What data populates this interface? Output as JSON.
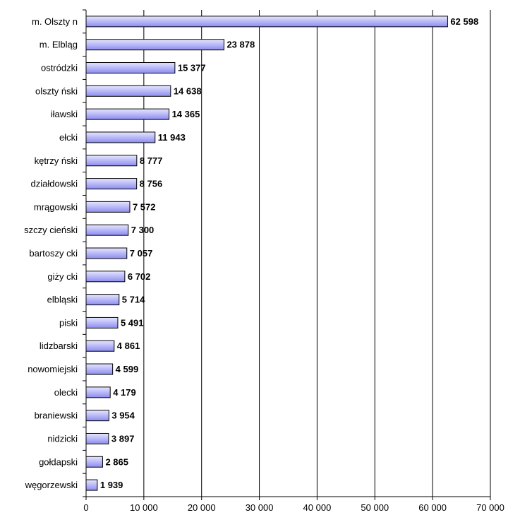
{
  "chart_data": {
    "type": "bar",
    "orientation": "horizontal",
    "categories": [
      "m. Olsztyn",
      "m. Elbląg",
      "ostródzki",
      "olsztyński",
      "iławski",
      "ełcki",
      "kętrzyński",
      "działdowski",
      "mrągowski",
      "szczycieński",
      "bartoszycki",
      "giżycki",
      "elbląski",
      "piski",
      "lidzbarski",
      "nowomiejski",
      "olecki",
      "braniewski",
      "nidzicki",
      "gołdapski",
      "węgorzewski"
    ],
    "category_labels": [
      "m. Olszty n",
      "m. Elbląg",
      "ostródzki",
      "olszty ński",
      "iławski",
      "ełcki",
      "kętrzy ński",
      "działdowski",
      "mrągowski",
      "szczy cieński",
      "bartoszy cki",
      "giży cki",
      "elbląski",
      "piski",
      "lidzbarski",
      "nowomiejski",
      "olecki",
      "braniewski",
      "nidzicki",
      "gołdapski",
      "węgorzewski"
    ],
    "values": [
      62598,
      23878,
      15377,
      14638,
      14365,
      11943,
      8777,
      8756,
      7572,
      7300,
      7057,
      6702,
      5714,
      5491,
      4861,
      4599,
      4179,
      3954,
      3897,
      2865,
      1939
    ],
    "value_labels": [
      "62 598",
      "23 878",
      "15 377",
      "14 638",
      "14 365",
      "11 943",
      "8 777",
      "8 756",
      "7 572",
      "7 300",
      "7 057",
      "6 702",
      "5 714",
      "5 491",
      "4 861",
      "4 599",
      "4 179",
      "3 954",
      "3 897",
      "2 865",
      "1 939"
    ],
    "xticks": [
      0,
      10000,
      20000,
      30000,
      40000,
      50000,
      60000,
      70000
    ],
    "xtick_labels": [
      "0",
      "10 000",
      "20 000",
      "30 000",
      "40 000",
      "50 000",
      "60 000",
      "70 000"
    ],
    "xlim": [
      0,
      70000
    ],
    "grid": "vertical",
    "title": "",
    "xlabel": "",
    "ylabel": "",
    "colors": {
      "bar_fill_light": "#e6e6ff",
      "bar_fill_dark": "#8c8cf0",
      "bar_stroke": "#000000",
      "grid": "#000000"
    }
  }
}
